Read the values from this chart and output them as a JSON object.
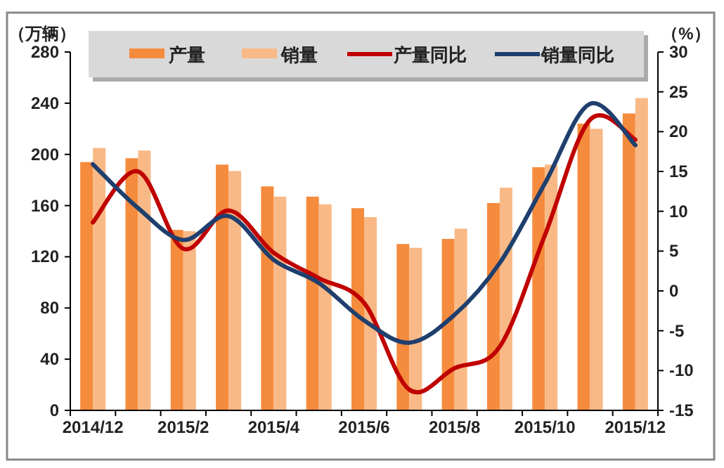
{
  "chart_data": {
    "type": "bar",
    "ylabel": "（万辆）",
    "y2label": "（%）",
    "legend": "top",
    "categories": [
      "2014/12",
      null,
      "2015/2",
      null,
      "2015/4",
      null,
      "2015/6",
      null,
      "2015/8",
      null,
      "2015/10",
      null,
      "2015/12"
    ],
    "ylim": [
      0,
      280
    ],
    "yticks": [
      0,
      40,
      80,
      120,
      160,
      200,
      240,
      280
    ],
    "y2lim": [
      -15,
      30
    ],
    "y2ticks": [
      -15,
      -10,
      -5,
      0,
      5,
      10,
      15,
      20,
      25,
      30
    ],
    "series": [
      {
        "name": "产量",
        "color": "#f58b3d",
        "values": [
          194,
          197,
          141,
          192,
          175,
          167,
          158,
          130,
          134,
          162,
          190,
          224,
          232
        ]
      },
      {
        "name": "销量",
        "color": "#f8b986",
        "values": [
          205,
          203,
          140,
          187,
          167,
          161,
          151,
          127,
          142,
          174,
          192,
          220,
          244
        ]
      },
      {
        "name": "产量同比",
        "type": "line",
        "axis": "y2",
        "color": "#c00000",
        "values": [
          8.6,
          15.0,
          5.3,
          10.1,
          4.8,
          1.6,
          -1.5,
          -12.4,
          -9.7,
          -7,
          7,
          21.5,
          19
        ]
      },
      {
        "name": "销量同比",
        "type": "line",
        "axis": "y2",
        "color": "#1f3f6e",
        "values": [
          15.9,
          10.4,
          6.4,
          9.4,
          3.9,
          1.0,
          -3.7,
          -6.5,
          -3,
          3.5,
          13.5,
          23.5,
          18.3
        ]
      }
    ]
  }
}
